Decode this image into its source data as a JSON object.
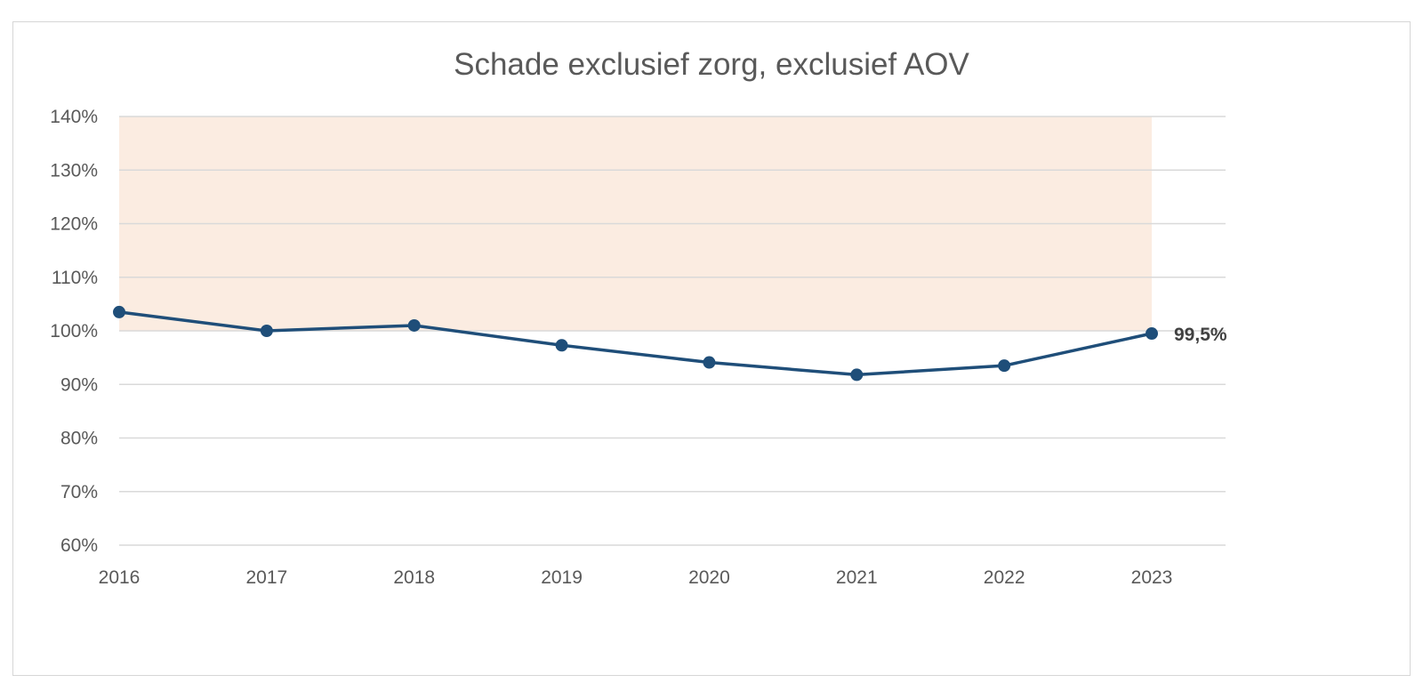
{
  "chart_data": {
    "type": "line",
    "title": "Schade exclusief zorg, exclusief AOV",
    "xlabel": "",
    "ylabel": "",
    "x": [
      "2016",
      "2017",
      "2018",
      "2019",
      "2020",
      "2021",
      "2022",
      "2023"
    ],
    "series": [
      {
        "values": [
          103.5,
          100.0,
          101.0,
          97.3,
          94.1,
          91.8,
          93.5,
          99.5
        ],
        "color": "#1f4e79"
      }
    ],
    "ylim": [
      60,
      140
    ],
    "yticks": [
      60,
      70,
      80,
      90,
      100,
      110,
      120,
      130,
      140
    ],
    "ytick_labels": [
      "60%",
      "70%",
      "80%",
      "90%",
      "100%",
      "110%",
      "120%",
      "130%",
      "140%"
    ],
    "shaded_band": {
      "from": 100,
      "to": 140,
      "color": "#fbece1"
    },
    "annotations": [
      {
        "x": "2023",
        "y": 99.5,
        "text": "99,5%"
      }
    ],
    "grid": true,
    "legend": "none",
    "colors": {
      "grid": "#d9d9d9",
      "text": "#595959",
      "frame": "#d6d6d6"
    }
  }
}
